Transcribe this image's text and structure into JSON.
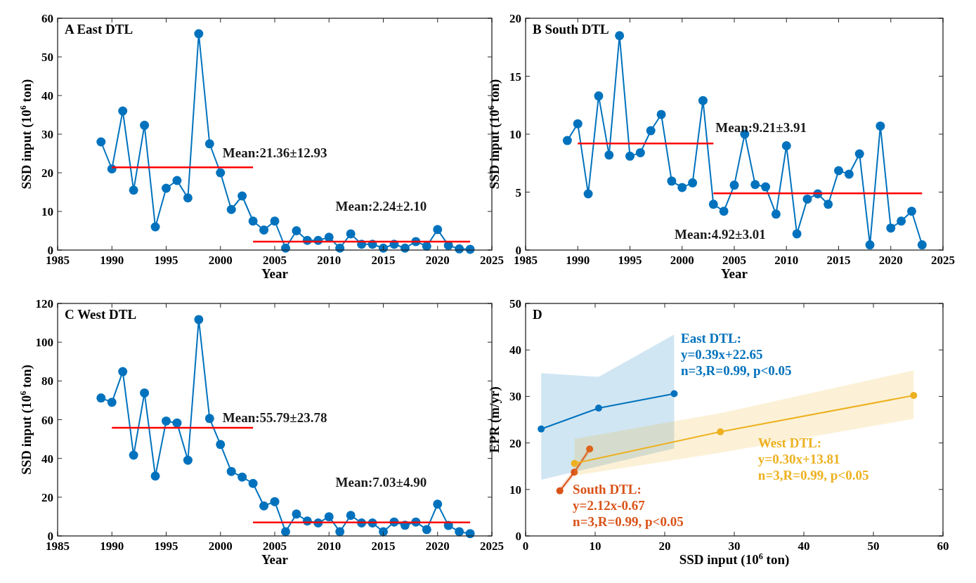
{
  "chart_data": [
    {
      "type": "line",
      "title": "A  East DTL",
      "xlabel": "Year",
      "ylabel": "SSD input (10$^{6}$ ton)",
      "xlim": [
        1985,
        2025
      ],
      "xticks": [
        1985,
        1990,
        1995,
        2000,
        2005,
        2010,
        2015,
        2020,
        2025
      ],
      "ylim": [
        0,
        60
      ],
      "yticks": [
        0,
        10,
        20,
        30,
        40,
        50,
        60
      ],
      "marker": "circle",
      "grid": false,
      "x": [
        1989,
        1990,
        1991,
        1992,
        1993,
        1994,
        1995,
        1996,
        1997,
        1998,
        1999,
        2000,
        2001,
        2002,
        2003,
        2004,
        2005,
        2006,
        2007,
        2008,
        2009,
        2010,
        2011,
        2012,
        2013,
        2014,
        2015,
        2016,
        2017,
        2018,
        2019,
        2020,
        2021,
        2022,
        2023
      ],
      "series": [
        {
          "color": "#0072bd",
          "values": [
            28,
            21,
            36,
            15.5,
            32.3,
            6,
            16,
            18,
            13.5,
            56,
            27.5,
            20,
            10.5,
            14,
            7.5,
            5.2,
            7.5,
            0.5,
            5,
            2.5,
            2.5,
            3.3,
            0.5,
            4.2,
            1.5,
            1.5,
            0.5,
            1.5,
            0.5,
            2.2,
            1,
            5.3,
            1.2,
            0.3,
            0.2
          ]
        },
        {
          "color": "#ff0000",
          "marker": "none",
          "x": [
            1990,
            2003
          ],
          "values": [
            21.4,
            21.4
          ]
        },
        {
          "color": "#ff0000",
          "marker": "none",
          "x": [
            2003,
            2023
          ],
          "values": [
            2.2,
            2.2
          ]
        }
      ],
      "annotations": [
        "Mean:21.36±12.93",
        "Mean:2.24±2.10"
      ]
    },
    {
      "type": "line",
      "title": "B  South DTL",
      "xlabel": "Year",
      "ylabel": "SSD input (10$^{6}$ ton)",
      "xlim": [
        1985,
        2025
      ],
      "xticks": [
        1985,
        1990,
        1995,
        2000,
        2005,
        2010,
        2015,
        2020,
        2025
      ],
      "ylim": [
        0,
        20
      ],
      "yticks": [
        0,
        5,
        10,
        15,
        20
      ],
      "marker": "circle",
      "grid": false,
      "x": [
        1989,
        1990,
        1991,
        1992,
        1993,
        1994,
        1995,
        1996,
        1997,
        1998,
        1999,
        2000,
        2001,
        2002,
        2003,
        2004,
        2005,
        2006,
        2007,
        2008,
        2009,
        2010,
        2011,
        2012,
        2013,
        2014,
        2015,
        2016,
        2017,
        2018,
        2019,
        2020,
        2021,
        2022,
        2023
      ],
      "series": [
        {
          "color": "#0072bd",
          "values": [
            9.45,
            10.9,
            4.85,
            13.3,
            8.2,
            18.5,
            8.1,
            8.4,
            10.3,
            11.7,
            5.95,
            5.4,
            5.8,
            12.9,
            3.95,
            3.35,
            5.6,
            10,
            5.65,
            5.45,
            3.1,
            9,
            1.4,
            4.4,
            4.85,
            3.95,
            6.85,
            6.55,
            8.3,
            0.45,
            10.7,
            1.9,
            2.5,
            3.35,
            0.45
          ]
        },
        {
          "color": "#ff0000",
          "marker": "none",
          "x": [
            1990,
            2003
          ],
          "values": [
            9.2,
            9.2
          ]
        },
        {
          "color": "#ff0000",
          "marker": "none",
          "x": [
            2003,
            2023
          ],
          "values": [
            4.9,
            4.9
          ]
        }
      ],
      "annotations": [
        "Mean:9.21±3.91",
        "Mean:4.92±3.01"
      ]
    },
    {
      "type": "line",
      "title": "C  West DTL",
      "xlabel": "Year",
      "ylabel": "SSD input (10$^{6}$ ton)",
      "xlim": [
        1985,
        2025
      ],
      "xticks": [
        1985,
        1990,
        1995,
        2000,
        2005,
        2010,
        2015,
        2020,
        2025
      ],
      "ylim": [
        0,
        120
      ],
      "yticks": [
        0,
        20,
        40,
        60,
        80,
        100,
        120
      ],
      "marker": "circle",
      "grid": false,
      "x": [
        1989,
        1990,
        1991,
        1992,
        1993,
        1994,
        1995,
        1996,
        1997,
        1998,
        1999,
        2000,
        2001,
        2002,
        2003,
        2004,
        2005,
        2006,
        2007,
        2008,
        2009,
        2010,
        2011,
        2012,
        2013,
        2014,
        2015,
        2016,
        2017,
        2018,
        2019,
        2020,
        2021,
        2022,
        2023
      ],
      "series": [
        {
          "color": "#0072bd",
          "values": [
            71.2,
            69,
            84.8,
            41.7,
            73.8,
            30.9,
            59.3,
            58.3,
            39.1,
            111.7,
            60.6,
            47.2,
            33.3,
            30.4,
            27.1,
            15.5,
            17.7,
            2.2,
            11.3,
            7.7,
            6.7,
            9.9,
            2.2,
            10.6,
            6.7,
            6.7,
            2.2,
            7.2,
            5.5,
            7.2,
            3.3,
            16.4,
            5.4,
            2.2,
            1.2
          ]
        },
        {
          "color": "#ff0000",
          "marker": "none",
          "x": [
            1990,
            2003
          ],
          "values": [
            55.8,
            55.8
          ]
        },
        {
          "color": "#ff0000",
          "marker": "none",
          "x": [
            2003,
            2023
          ],
          "values": [
            7.0,
            7.0
          ]
        }
      ],
      "annotations": [
        "Mean:55.79±23.78",
        "Mean:7.03±4.90"
      ]
    },
    {
      "type": "line",
      "title": "D",
      "xlabel": "SSD input (10$^{6}$ ton)",
      "ylabel": "EPR (m/yr)",
      "xlim": [
        0,
        60
      ],
      "xticks": [
        0,
        10,
        20,
        30,
        40,
        50,
        60
      ],
      "ylim": [
        0,
        50
      ],
      "yticks": [
        0,
        10,
        20,
        30,
        40,
        50
      ],
      "marker": "circle",
      "grid": false,
      "series": [
        {
          "color": "#0072bd",
          "x": [
            2.24,
            10.5,
            21.36
          ],
          "values": [
            23,
            27.5,
            30.6
          ],
          "lower": [
            12.1,
            15,
            18.8
          ],
          "upper": [
            35,
            34.2,
            43.3
          ]
        },
        {
          "color": "#d95319",
          "x": [
            4.92,
            7,
            9.21
          ],
          "values": [
            9.7,
            13.7,
            18.7
          ],
          "lower": [
            8.9,
            13,
            18
          ],
          "upper": [
            10.5,
            14.4,
            19.4
          ]
        },
        {
          "color": "#edb120",
          "x": [
            7.03,
            28,
            55.79
          ],
          "values": [
            15.6,
            22.4,
            30.2
          ],
          "lower": [
            13,
            17.9,
            25.2
          ],
          "upper": [
            20.9,
            26.4,
            35.6
          ]
        }
      ],
      "annotations": [
        "East DTL:\ny=0.39x+22.65\nn=3,R=0.99, p<0.05",
        "South DTL:\ny=2.12x-0.67\nn=3,R=0.99, p<0.05",
        "West DTL:\ny=0.30x+13.81\nn=3,R=0.99, p<0.05"
      ]
    }
  ]
}
